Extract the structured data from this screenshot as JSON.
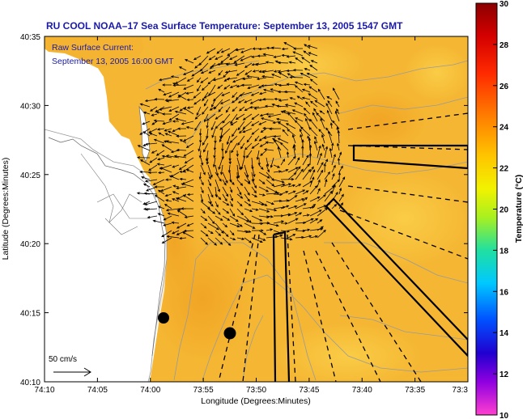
{
  "title": "RU COOL  NOAA–17  Sea Surface Temperature:  September 13, 2005 1547 GMT",
  "legend": {
    "line1": "Raw Surface Current:",
    "line2": "September 13, 2005 16:00 GMT"
  },
  "axes": {
    "xlabel": "Longitude (Degrees:Minutes)",
    "ylabel": "Latitude (Degrees:Minutes)",
    "xticks": [
      "74:10",
      "74:05",
      "74:00",
      "73:55",
      "73:50",
      "73:45",
      "73:40",
      "73:35",
      "73:3"
    ],
    "yticks": [
      "40:35",
      "40:30",
      "40:25",
      "40:20",
      "40:15",
      "40:10"
    ]
  },
  "colorbar": {
    "label": "Temperature (°C)",
    "ticks": [
      "30",
      "28",
      "26",
      "24",
      "22",
      "20",
      "18",
      "16",
      "14",
      "12",
      "10"
    ],
    "min": 10,
    "max": 30
  },
  "scale_bar": {
    "label": "50 cm/s"
  },
  "colors": {
    "sst_dominant": "#f5b733",
    "title_blue": "#1a1aa8",
    "land": "#ffffff"
  }
}
